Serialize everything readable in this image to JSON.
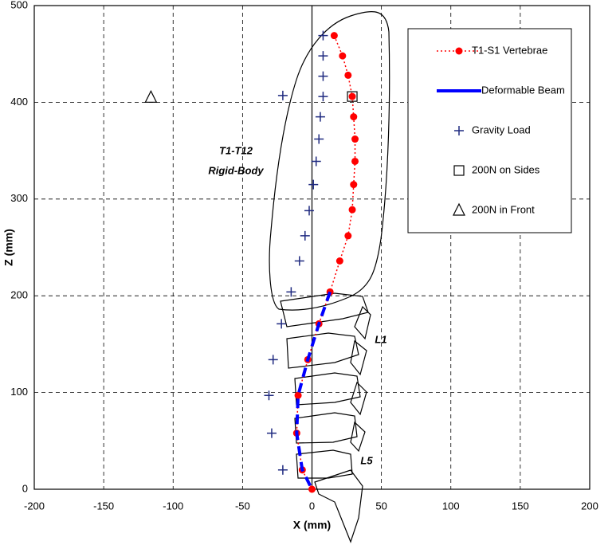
{
  "chart_data": {
    "type": "scatter",
    "xlabel": "X (mm)",
    "ylabel": "Z (mm)",
    "xlim": [
      -200,
      200
    ],
    "xticks": [
      -200,
      -150,
      -100,
      -50,
      0,
      50,
      100,
      150,
      200
    ],
    "ylim": [
      0,
      500
    ],
    "yticks": [
      0,
      100,
      200,
      300,
      400,
      500
    ],
    "grid": true,
    "legend": "upper right",
    "annotations": [
      "T1-T12",
      "Rigid-Body",
      "L1",
      "L5"
    ],
    "series": [
      {
        "name": "T1-S1 Vertebrae",
        "color": "#ff0000",
        "marker": "circle",
        "line": "dotted",
        "x": [
          16,
          22,
          26,
          29,
          30,
          31,
          31,
          30,
          29,
          26,
          20,
          13,
          5,
          -3,
          -10,
          -11,
          -7,
          0
        ],
        "values": [
          469,
          448,
          428,
          406,
          385,
          362,
          339,
          315,
          289,
          262,
          236,
          204,
          171,
          134,
          97,
          58,
          20,
          0
        ]
      },
      {
        "name": "Deformable Beam",
        "color": "#0000ff",
        "marker": "none",
        "line": "dashed",
        "x": [
          13,
          5,
          -3,
          -10,
          -11,
          -7,
          0
        ],
        "values": [
          204,
          171,
          134,
          97,
          58,
          20,
          0
        ]
      },
      {
        "name": "Gravity Load",
        "color": "#1f2a80",
        "marker": "plus",
        "line": "none",
        "x": [
          8,
          8,
          8,
          8,
          6,
          5,
          3,
          1,
          -2,
          -5,
          -9,
          -15,
          -22,
          -28,
          -31,
          -29,
          -21,
          -21
        ],
        "values": [
          469,
          448,
          427,
          406,
          385,
          362,
          339,
          315,
          288,
          262,
          236,
          204,
          171,
          134,
          97,
          58,
          20,
          407
        ]
      },
      {
        "name": "200N on Sides",
        "color": "#000000",
        "marker": "square",
        "line": "none",
        "x": [
          29
        ],
        "values": [
          406
        ]
      },
      {
        "name": "200N in Front",
        "color": "#000000",
        "marker": "triangle",
        "line": "none",
        "x": [
          -116
        ],
        "values": [
          405
        ]
      }
    ]
  }
}
